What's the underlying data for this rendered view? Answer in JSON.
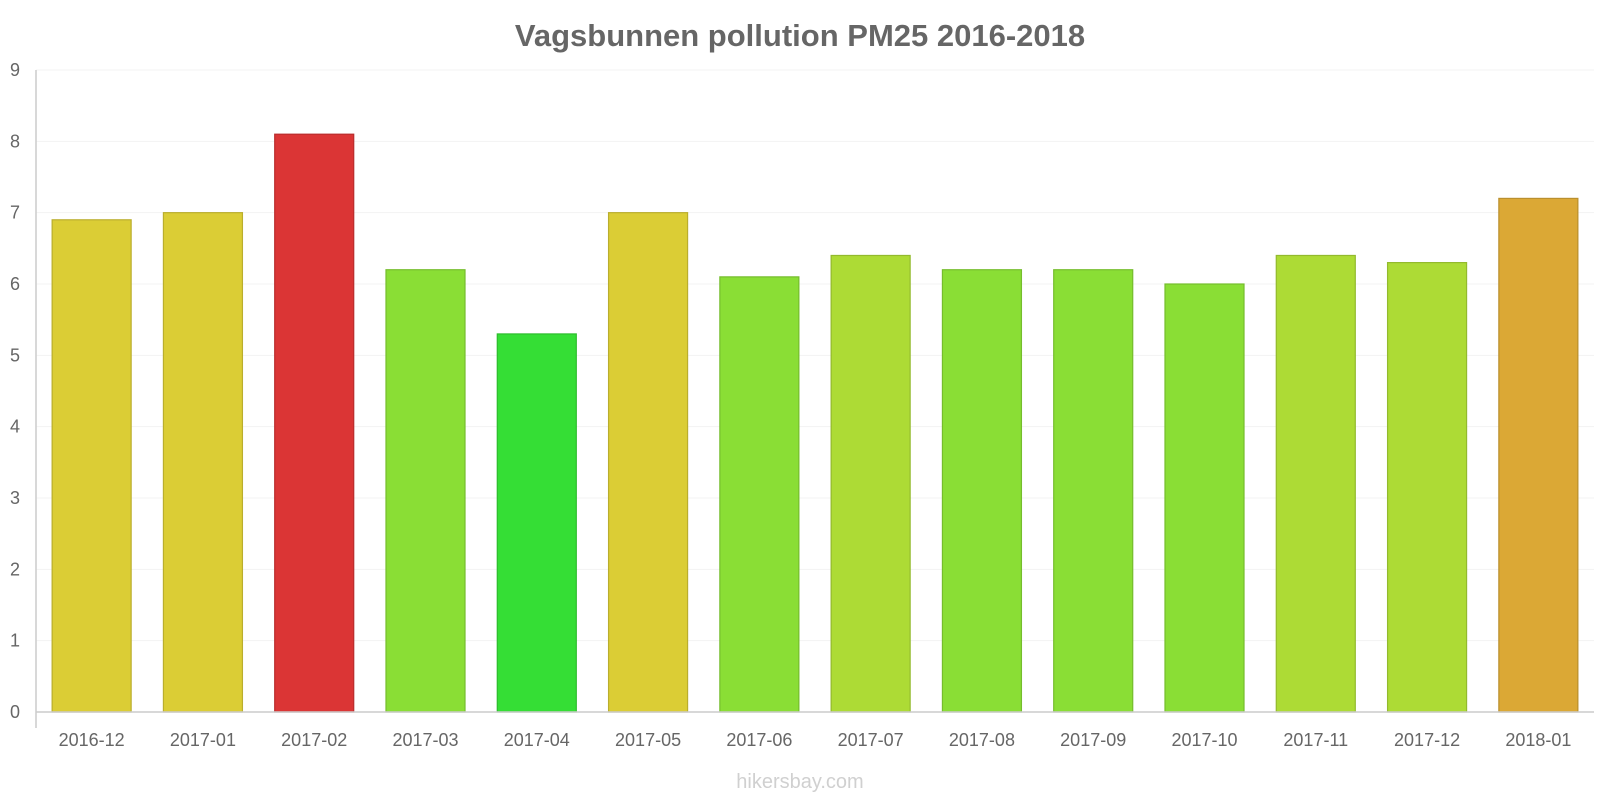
{
  "chart_data": {
    "type": "bar",
    "title": "Vagsbunnen pollution PM25 2016-2018",
    "xlabel": "",
    "ylabel": "",
    "ylim": [
      0,
      9
    ],
    "yticks": [
      0,
      1,
      2,
      3,
      4,
      5,
      6,
      7,
      8,
      9
    ],
    "categories": [
      "2016-12",
      "2017-01",
      "2017-02",
      "2017-03",
      "2017-04",
      "2017-05",
      "2017-06",
      "2017-07",
      "2017-08",
      "2017-09",
      "2017-10",
      "2017-11",
      "2017-12",
      "2018-01"
    ],
    "values": [
      6.9,
      7.0,
      8.1,
      6.2,
      5.3,
      7.0,
      6.1,
      6.4,
      6.2,
      6.2,
      6.0,
      6.4,
      6.3,
      7.2
    ],
    "colors": [
      "#dbcd35",
      "#dbcd35",
      "#db3535",
      "#8ade35",
      "#35de35",
      "#dbcd35",
      "#8ade35",
      "#addb35",
      "#8ade35",
      "#8ade35",
      "#8ade35",
      "#addb35",
      "#addb35",
      "#dba835"
    ],
    "grid": true,
    "legend": "none",
    "credit": "hikersbay.com"
  }
}
